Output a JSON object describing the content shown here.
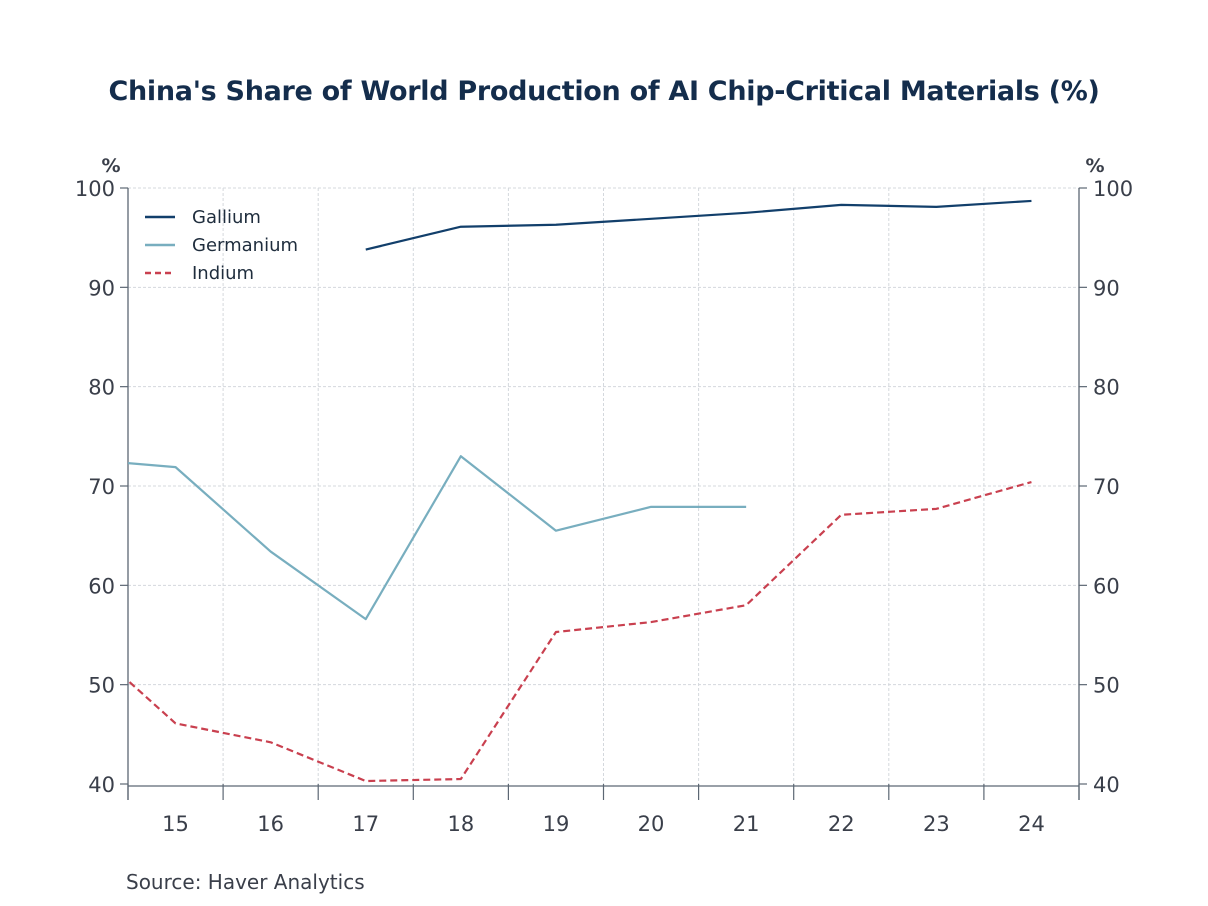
{
  "chart_data": {
    "type": "line",
    "title": "China's Share of World Production of AI Chip-Critical Materials (%)",
    "xlabel": "",
    "ylabel_left": "%",
    "ylabel_right": "%",
    "x_tick_labels": [
      "15",
      "16",
      "17",
      "18",
      "19",
      "20",
      "21",
      "22",
      "23",
      "24"
    ],
    "x_range": [
      2014.5,
      2024.5
    ],
    "ylim": [
      40,
      100
    ],
    "y_ticks": [
      40,
      50,
      60,
      70,
      80,
      90,
      100
    ],
    "grid": true,
    "legend_position": "top-left",
    "series": [
      {
        "name": "Gallium",
        "color": "#123f6b",
        "style": "solid",
        "x": [
          2017,
          2018,
          2019,
          2020,
          2021,
          2022,
          2023,
          2024
        ],
        "values": [
          93.8,
          96.1,
          96.3,
          96.9,
          97.5,
          98.3,
          98.1,
          98.7
        ]
      },
      {
        "name": "Germanium",
        "color": "#78aebf",
        "style": "solid",
        "x": [
          2014,
          2015,
          2016,
          2017,
          2018,
          2019,
          2020,
          2021
        ],
        "values": [
          72.7,
          71.9,
          63.4,
          56.6,
          73.0,
          65.5,
          67.9,
          67.9
        ]
      },
      {
        "name": "Indium",
        "color": "#c9404f",
        "style": "dashed",
        "x": [
          2014,
          2015,
          2016,
          2017,
          2018,
          2019,
          2020,
          2021,
          2022,
          2023,
          2024
        ],
        "values": [
          54.7,
          46.1,
          44.2,
          40.3,
          40.5,
          55.3,
          56.3,
          58.0,
          67.1,
          67.7,
          70.4
        ]
      }
    ],
    "source": "Source:  Haver Analytics"
  }
}
